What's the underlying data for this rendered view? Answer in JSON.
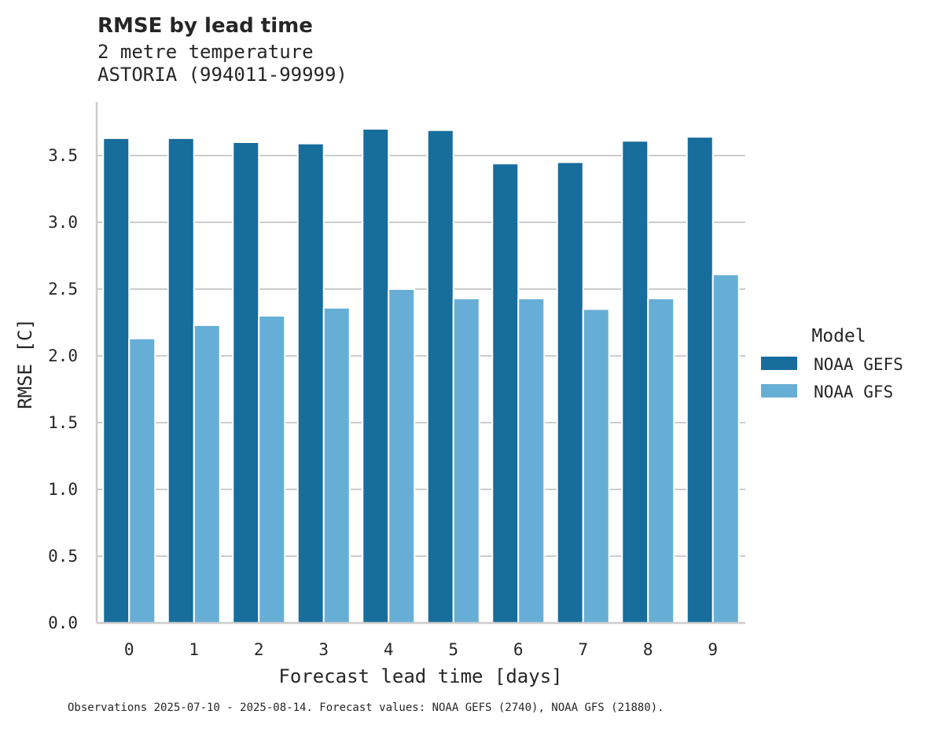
{
  "chart_data": {
    "type": "bar",
    "title": "RMSE by lead time",
    "subtitle_lines": [
      "2 metre temperature",
      "ASTORIA (994011-99999)"
    ],
    "xlabel": "Forecast lead time [days]",
    "ylabel": "RMSE [C]",
    "categories": [
      "0",
      "1",
      "2",
      "3",
      "4",
      "5",
      "6",
      "7",
      "8",
      "9"
    ],
    "ylim": [
      0,
      3.9
    ],
    "yticks": [
      "0.0",
      "0.5",
      "1.0",
      "1.5",
      "2.0",
      "2.5",
      "3.0",
      "3.5"
    ],
    "ytick_values": [
      0,
      0.5,
      1.0,
      1.5,
      2.0,
      2.5,
      3.0,
      3.5
    ],
    "grid": "horizontal",
    "series": [
      {
        "name": "NOAA GEFS",
        "color": "#176d9c",
        "values": [
          3.63,
          3.63,
          3.6,
          3.59,
          3.7,
          3.69,
          3.44,
          3.45,
          3.61,
          3.64
        ]
      },
      {
        "name": "NOAA GFS",
        "color": "#67aed6",
        "values": [
          2.13,
          2.23,
          2.3,
          2.36,
          2.5,
          2.43,
          2.43,
          2.35,
          2.43,
          2.61
        ]
      }
    ],
    "legend": {
      "title": "Model",
      "placement": "right"
    },
    "footnote": "Observations 2025-07-10 - 2025-08-14. Forecast values: NOAA GEFS (2740), NOAA GFS (21880)."
  }
}
